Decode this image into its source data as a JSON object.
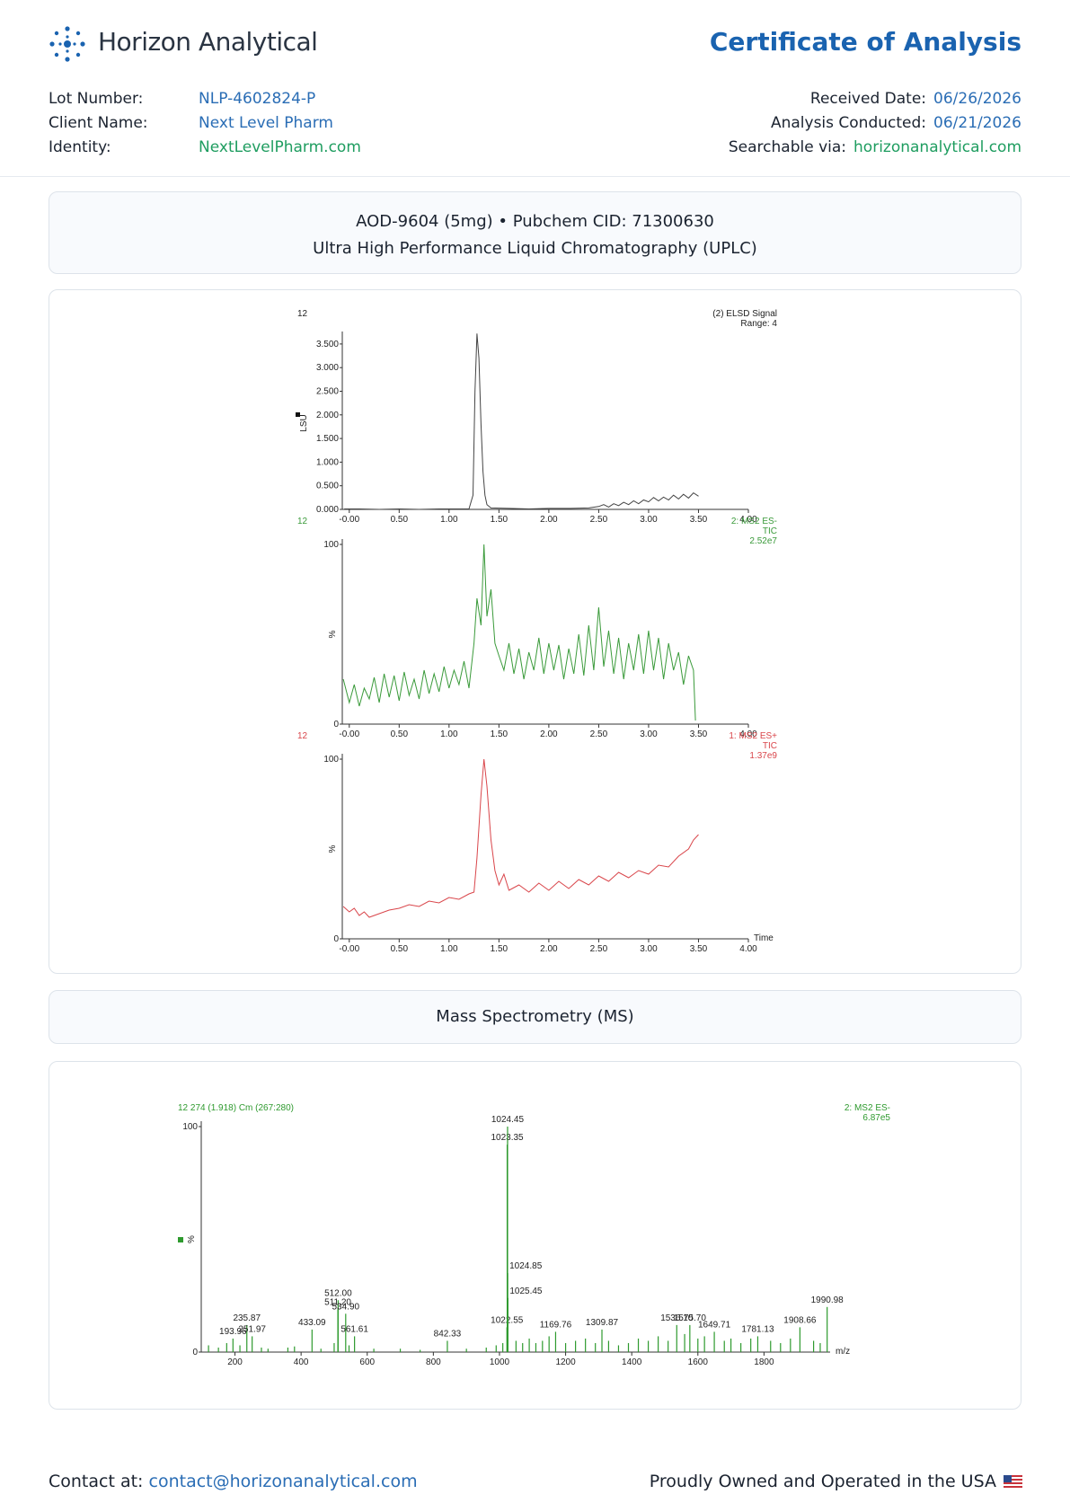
{
  "header": {
    "brand": "Horizon Analytical",
    "title": "Certificate of Analysis"
  },
  "info_left": [
    {
      "label": "Lot Number:",
      "value": "NLP-4602824-P"
    },
    {
      "label": "Client Name:",
      "value": "Next Level Pharm"
    },
    {
      "label": "Identity:",
      "value": "NextLevelPharm.com"
    }
  ],
  "info_right": [
    {
      "label": "Received Date:",
      "value": "06/26/2026"
    },
    {
      "label": "Analysis Conducted:",
      "value": "06/21/2026"
    },
    {
      "label": "Searchable via:",
      "value": "horizonanalytical.com"
    }
  ],
  "compound": {
    "line1": "AOD-9604 (5mg) • Pubchem CID: 71300630",
    "line2": "Ultra High Performance Liquid Chromatography (UPLC)"
  },
  "ms_title": "Mass Spectrometry (MS)",
  "chart_data": [
    {
      "type": "line",
      "sample": "12",
      "annotation": [
        "(2) ELSD Signal",
        "Range: 4"
      ],
      "ylabel": "LSU",
      "color": "#444444",
      "xlim": [
        -0.07,
        4.0
      ],
      "xticks": [
        {
          "value": 0,
          "label": "-0.00"
        },
        {
          "value": 0.5,
          "label": "0.50"
        },
        {
          "value": 1,
          "label": "1.00"
        },
        {
          "value": 1.5,
          "label": "1.50"
        },
        {
          "value": 2,
          "label": "2.00"
        },
        {
          "value": 2.5,
          "label": "2.50"
        },
        {
          "value": 3,
          "label": "3.00"
        },
        {
          "value": 3.5,
          "label": "3.50"
        },
        {
          "value": 4,
          "label": "4.00"
        }
      ],
      "ylim": [
        0,
        3.65
      ],
      "yticks": [
        {
          "value": 0,
          "label": "0.000"
        },
        {
          "value": 0.5,
          "label": "0.500"
        },
        {
          "value": 1,
          "label": "1.000"
        },
        {
          "value": 1.5,
          "label": "1.500"
        },
        {
          "value": 2,
          "label": "2.000"
        },
        {
          "value": 2.5,
          "label": "2.500"
        },
        {
          "value": 3,
          "label": "3.000"
        },
        {
          "value": 3.5,
          "label": "3.500"
        }
      ],
      "x": [
        -0.05,
        0.1,
        0.3,
        0.5,
        0.7,
        0.9,
        1.1,
        1.2,
        1.24,
        1.26,
        1.28,
        1.3,
        1.32,
        1.34,
        1.36,
        1.38,
        1.42,
        1.6,
        1.8,
        2.0,
        2.2,
        2.4,
        2.5,
        2.55,
        2.6,
        2.65,
        2.7,
        2.75,
        2.8,
        2.85,
        2.9,
        2.95,
        3.0,
        3.05,
        3.1,
        3.15,
        3.2,
        3.25,
        3.3,
        3.35,
        3.4,
        3.45,
        3.5
      ],
      "values": [
        0.01,
        0.01,
        0.0,
        0.01,
        0.0,
        0.01,
        0.01,
        0.01,
        0.3,
        2.5,
        3.72,
        3.2,
        1.8,
        0.8,
        0.3,
        0.1,
        0.03,
        0.02,
        0.01,
        0.02,
        0.02,
        0.03,
        0.06,
        0.1,
        0.05,
        0.12,
        0.08,
        0.15,
        0.1,
        0.18,
        0.12,
        0.2,
        0.16,
        0.25,
        0.18,
        0.26,
        0.2,
        0.3,
        0.22,
        0.32,
        0.24,
        0.35,
        0.28
      ]
    },
    {
      "type": "line",
      "sample": "12",
      "annotation": [
        "2: MS2 ES-",
        "TIC",
        "2.52e7"
      ],
      "ylabel": "%",
      "color": "#3a9a3a",
      "xlim": [
        -0.07,
        4.0
      ],
      "xticks": [
        {
          "value": 0,
          "label": "-0.00"
        },
        {
          "value": 0.5,
          "label": "0.50"
        },
        {
          "value": 1,
          "label": "1.00"
        },
        {
          "value": 1.5,
          "label": "1.50"
        },
        {
          "value": 2,
          "label": "2.00"
        },
        {
          "value": 2.5,
          "label": "2.50"
        },
        {
          "value": 3,
          "label": "3.00"
        },
        {
          "value": 3.5,
          "label": "3.50"
        },
        {
          "value": 4,
          "label": "4.00"
        }
      ],
      "ylim": [
        0,
        100
      ],
      "yticks": [
        0,
        100
      ],
      "x": [
        -0.06,
        0.0,
        0.05,
        0.1,
        0.15,
        0.2,
        0.25,
        0.3,
        0.35,
        0.4,
        0.45,
        0.5,
        0.55,
        0.6,
        0.65,
        0.7,
        0.75,
        0.8,
        0.85,
        0.9,
        0.95,
        1.0,
        1.05,
        1.1,
        1.15,
        1.2,
        1.25,
        1.28,
        1.32,
        1.35,
        1.38,
        1.42,
        1.46,
        1.5,
        1.55,
        1.6,
        1.65,
        1.7,
        1.75,
        1.8,
        1.85,
        1.9,
        1.95,
        2.0,
        2.05,
        2.1,
        2.15,
        2.2,
        2.25,
        2.3,
        2.35,
        2.4,
        2.45,
        2.5,
        2.55,
        2.6,
        2.65,
        2.7,
        2.75,
        2.8,
        2.85,
        2.9,
        2.95,
        3.0,
        3.05,
        3.1,
        3.15,
        3.2,
        3.25,
        3.3,
        3.35,
        3.4,
        3.45,
        3.47
      ],
      "values": [
        25,
        12,
        22,
        10,
        20,
        14,
        26,
        12,
        28,
        15,
        27,
        13,
        29,
        16,
        25,
        14,
        30,
        17,
        28,
        18,
        32,
        20,
        30,
        22,
        35,
        20,
        45,
        70,
        55,
        100,
        60,
        75,
        45,
        38,
        30,
        45,
        28,
        42,
        25,
        40,
        30,
        48,
        28,
        45,
        30,
        44,
        25,
        42,
        28,
        50,
        27,
        55,
        30,
        65,
        32,
        52,
        28,
        48,
        25,
        45,
        30,
        50,
        28,
        52,
        30,
        48,
        25,
        45,
        30,
        40,
        22,
        38,
        30,
        2
      ]
    },
    {
      "type": "line",
      "sample": "12",
      "annotation": [
        "1: MS2 ES+",
        "TIC",
        "1.37e9"
      ],
      "ylabel": "%",
      "xlabel": "Time",
      "color": "#d9454a",
      "xlim": [
        -0.07,
        4.0
      ],
      "xticks": [
        {
          "value": 0,
          "label": "-0.00"
        },
        {
          "value": 0.5,
          "label": "0.50"
        },
        {
          "value": 1,
          "label": "1.00"
        },
        {
          "value": 1.5,
          "label": "1.50"
        },
        {
          "value": 2,
          "label": "2.00"
        },
        {
          "value": 2.5,
          "label": "2.50"
        },
        {
          "value": 3,
          "label": "3.00"
        },
        {
          "value": 3.5,
          "label": "3.50"
        },
        {
          "value": 4,
          "label": "4.00"
        }
      ],
      "ylim": [
        0,
        100
      ],
      "yticks": [
        0,
        100
      ],
      "x": [
        -0.06,
        0.0,
        0.05,
        0.1,
        0.15,
        0.2,
        0.3,
        0.4,
        0.5,
        0.6,
        0.7,
        0.8,
        0.9,
        1.0,
        1.1,
        1.2,
        1.25,
        1.28,
        1.32,
        1.35,
        1.38,
        1.42,
        1.46,
        1.5,
        1.55,
        1.6,
        1.7,
        1.8,
        1.9,
        2.0,
        2.1,
        2.2,
        2.3,
        2.4,
        2.5,
        2.6,
        2.7,
        2.8,
        2.9,
        3.0,
        3.1,
        3.2,
        3.3,
        3.4,
        3.45,
        3.5
      ],
      "values": [
        18,
        15,
        17,
        13,
        15,
        12,
        14,
        16,
        17,
        19,
        18,
        21,
        20,
        23,
        22,
        25,
        26,
        45,
        80,
        100,
        85,
        55,
        38,
        30,
        36,
        27,
        30,
        26,
        31,
        27,
        32,
        28,
        33,
        30,
        35,
        32,
        37,
        34,
        38,
        36,
        41,
        40,
        46,
        50,
        55,
        58
      ]
    },
    {
      "type": "spectrum",
      "title": "12 274 (1.918) Cm (267:280)",
      "annotation": [
        "2: MS2 ES-",
        "6.87e5"
      ],
      "ylabel": "%",
      "xlabel": "m/z",
      "color": "#2e9a2e",
      "xlim": [
        98,
        2000
      ],
      "xticks": [
        200,
        400,
        600,
        800,
        1000,
        1200,
        1400,
        1600,
        1800
      ],
      "ylim": [
        0,
        100
      ],
      "yticks": [
        0,
        100
      ],
      "x": [
        120,
        150,
        175,
        193.96,
        215,
        235.87,
        251.97,
        280,
        300,
        360,
        380,
        433.09,
        460,
        500,
        511.2,
        512.0,
        534.9,
        545,
        561.61,
        620,
        700,
        760,
        842.33,
        900,
        960,
        990,
        1010,
        1022.55,
        1023.35,
        1024.45,
        1024.85,
        1025.45,
        1050,
        1070,
        1090,
        1110,
        1130,
        1150,
        1169.76,
        1200,
        1230,
        1260,
        1290,
        1309.87,
        1330,
        1360,
        1390,
        1420,
        1450,
        1480,
        1510,
        1536.1,
        1560,
        1575.7,
        1600,
        1620,
        1649.71,
        1680,
        1700,
        1730,
        1760,
        1781.13,
        1820,
        1850,
        1880,
        1908.66,
        1950,
        1970,
        1990.98
      ],
      "x_labels": [
        null,
        null,
        null,
        "193.96",
        null,
        "235.87",
        "251.97",
        null,
        null,
        null,
        null,
        "433.09",
        null,
        null,
        "511.20",
        "512.00",
        "534.90",
        null,
        "561.61",
        null,
        null,
        null,
        "842.33",
        null,
        null,
        null,
        null,
        "1022.55",
        "1023.35",
        "1024.45",
        "1024.85",
        "1025.45",
        null,
        null,
        null,
        null,
        null,
        null,
        "1169.76",
        null,
        null,
        null,
        null,
        "1309.87",
        null,
        null,
        null,
        null,
        null,
        null,
        null,
        "1536.10",
        null,
        "1575.70",
        null,
        null,
        "1649.71",
        null,
        null,
        null,
        null,
        "1781.13",
        null,
        null,
        null,
        "1908.66",
        null,
        null,
        "1990.98"
      ],
      "values": [
        3,
        2,
        4,
        6,
        3,
        12,
        7,
        2,
        1.5,
        2,
        2.5,
        10,
        1.5,
        4,
        19,
        23,
        17,
        3,
        7,
        1.5,
        1.5,
        1,
        5,
        1.5,
        2,
        3,
        4,
        11,
        92,
        100,
        35,
        24,
        5,
        4,
        6,
        4,
        5,
        7,
        9,
        4,
        5,
        6,
        4,
        10,
        5,
        3,
        4,
        6,
        5,
        7,
        5,
        12,
        8,
        12,
        6,
        7,
        9,
        5,
        6,
        4,
        6,
        7,
        5,
        4,
        6,
        11,
        5,
        4,
        20
      ]
    }
  ],
  "footer": {
    "contact_label": "Contact at:",
    "contact_email": "contact@horizonanalytical.com",
    "made": "Proudly Owned and Operated in the USA"
  }
}
